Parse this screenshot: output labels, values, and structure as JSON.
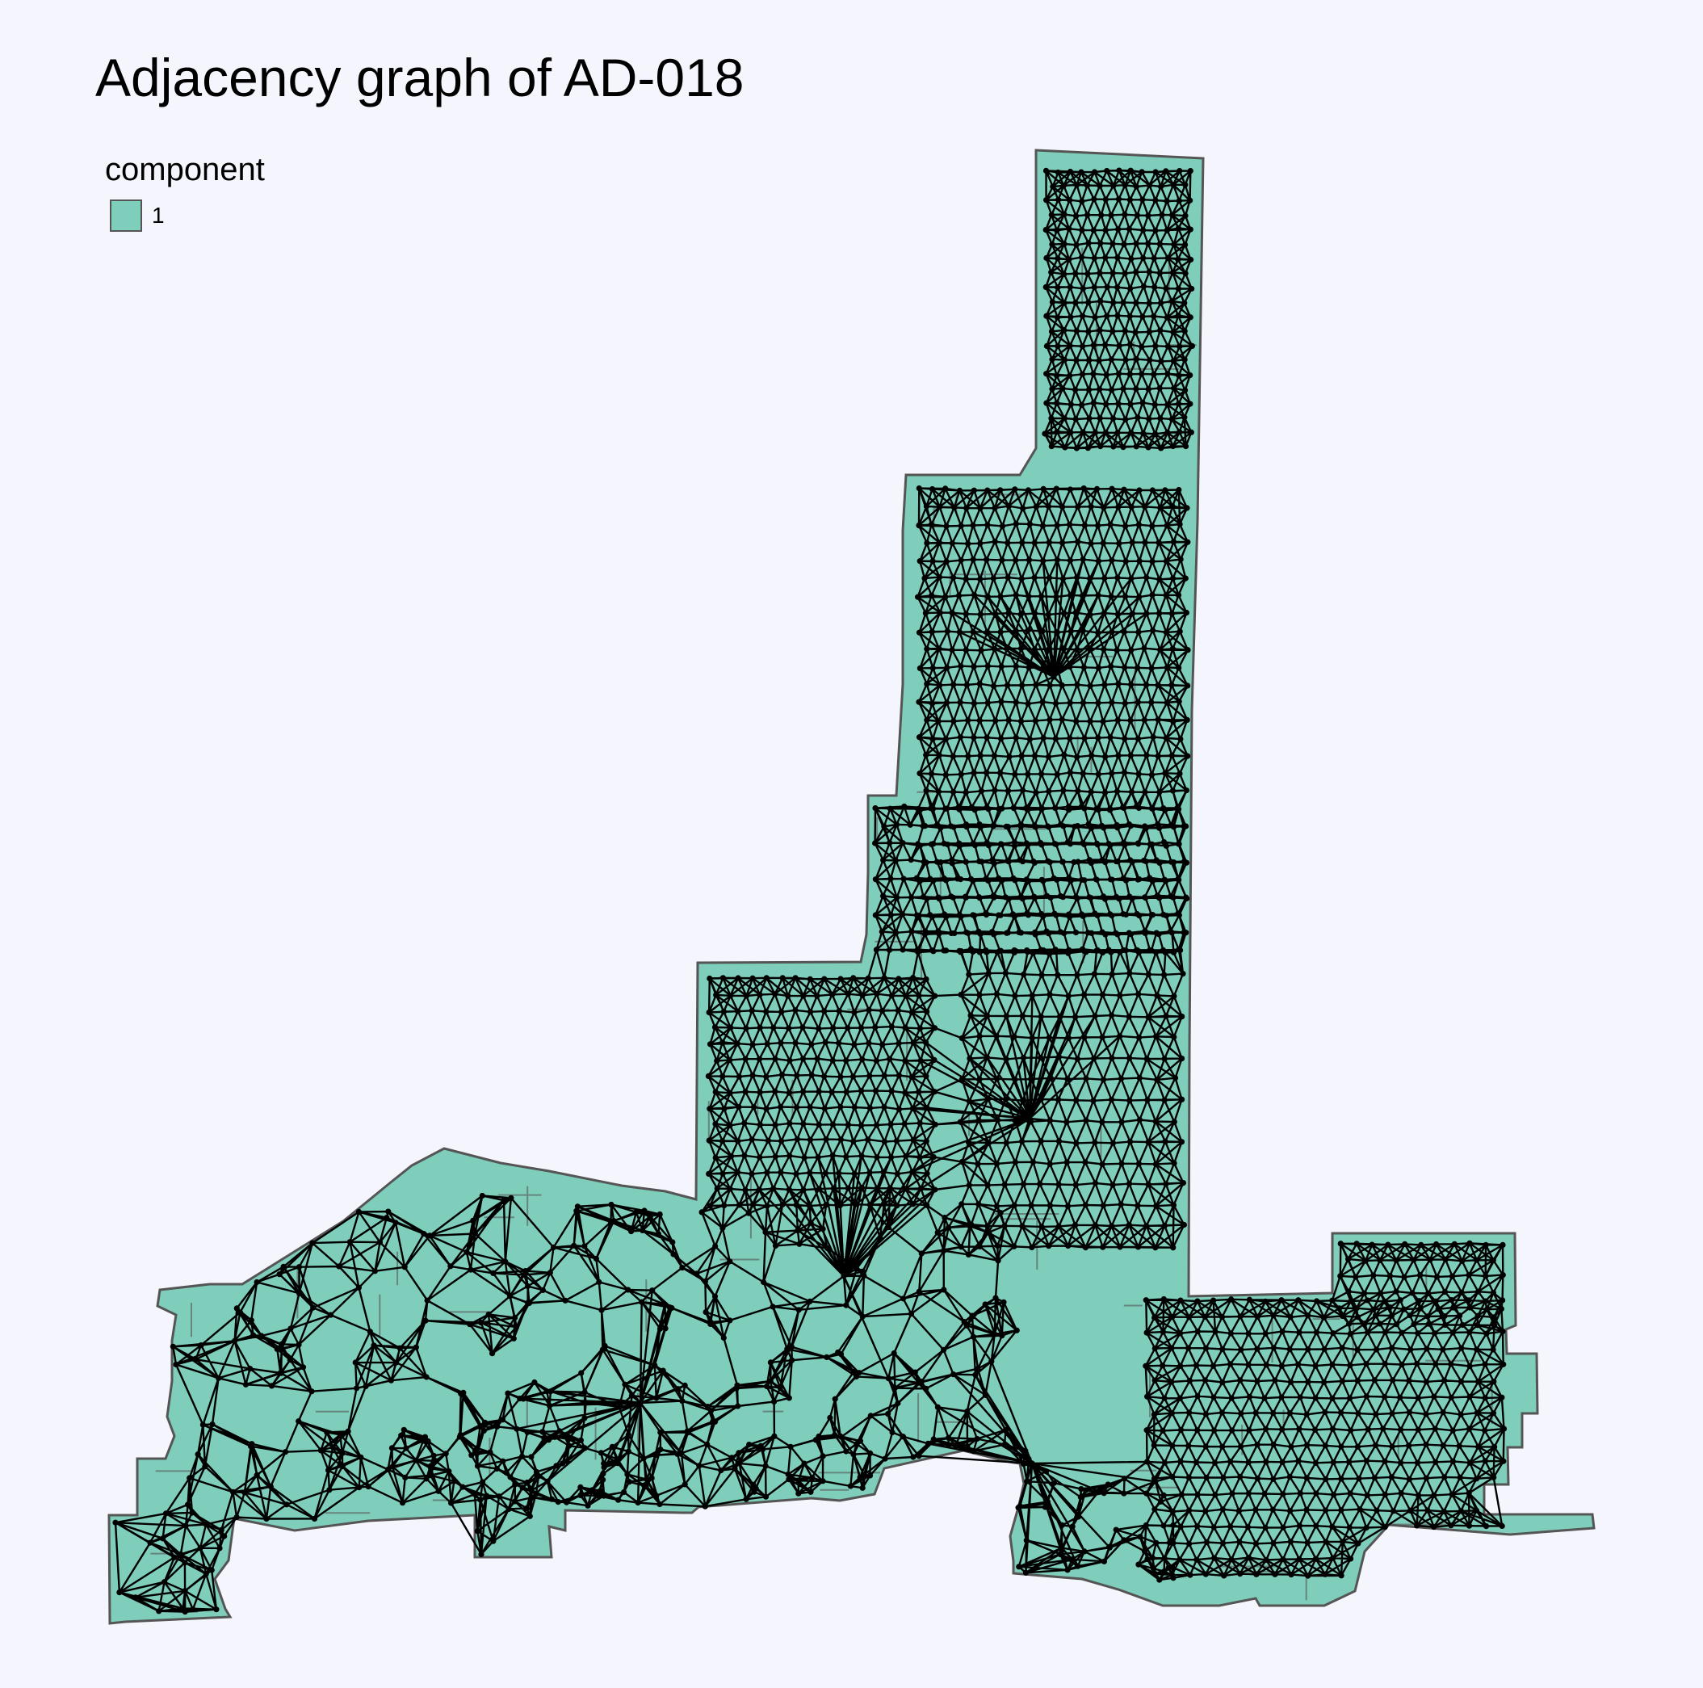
{
  "title": "Adjacency graph of AD-018",
  "legend": {
    "title": "component",
    "items": [
      {
        "label": "1",
        "color": "#7fcdbb"
      }
    ]
  },
  "colors": {
    "background": "#f5f6fd",
    "region_fill": "#7fcdbb",
    "region_border": "#555555",
    "edge": "#000000",
    "node": "#000000"
  }
}
